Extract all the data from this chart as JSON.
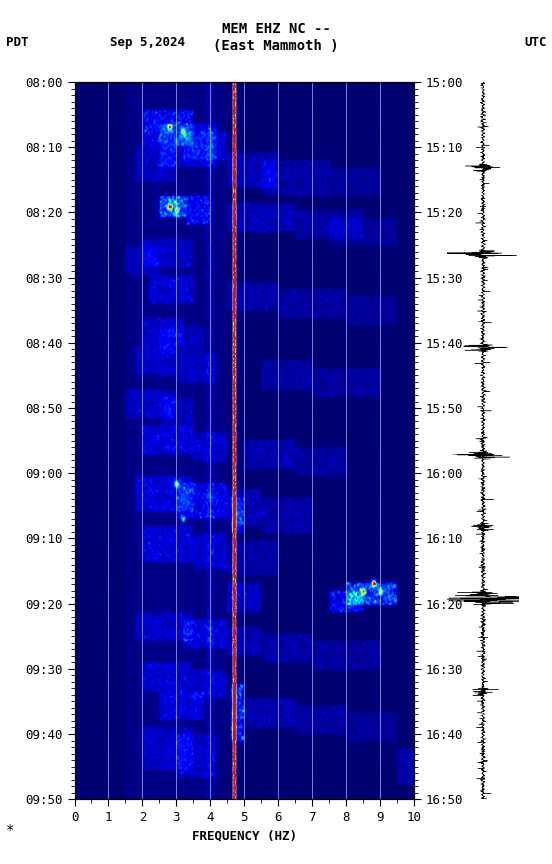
{
  "title_line1": "MEM EHZ NC --",
  "title_line2": "(East Mammoth )",
  "left_label": "PDT",
  "date_label": "Sep 5,2024",
  "right_label": "UTC",
  "xlabel": "FREQUENCY (HZ)",
  "xlim": [
    0,
    10
  ],
  "freq_ticks": [
    0,
    1,
    2,
    3,
    4,
    5,
    6,
    7,
    8,
    9,
    10
  ],
  "pdt_ticks": [
    "08:00",
    "08:10",
    "08:20",
    "08:30",
    "08:40",
    "08:50",
    "09:00",
    "09:10",
    "09:20",
    "09:30",
    "09:40",
    "09:50"
  ],
  "utc_ticks": [
    "15:00",
    "15:10",
    "15:20",
    "15:30",
    "15:40",
    "15:50",
    "16:00",
    "16:10",
    "16:20",
    "16:30",
    "16:40",
    "16:50"
  ],
  "background_color": "#ffffff",
  "fig_width": 5.52,
  "fig_height": 8.64,
  "dpi": 100,
  "cmap_colors": [
    [
      0.0,
      "#000066"
    ],
    [
      0.08,
      "#0000AA"
    ],
    [
      0.18,
      "#0000FF"
    ],
    [
      0.3,
      "#0055FF"
    ],
    [
      0.42,
      "#00AAFF"
    ],
    [
      0.54,
      "#00FFFF"
    ],
    [
      0.64,
      "#AAFF00"
    ],
    [
      0.74,
      "#FFFF00"
    ],
    [
      0.84,
      "#FF8800"
    ],
    [
      0.92,
      "#FF2200"
    ],
    [
      1.0,
      "#FF0000"
    ]
  ]
}
